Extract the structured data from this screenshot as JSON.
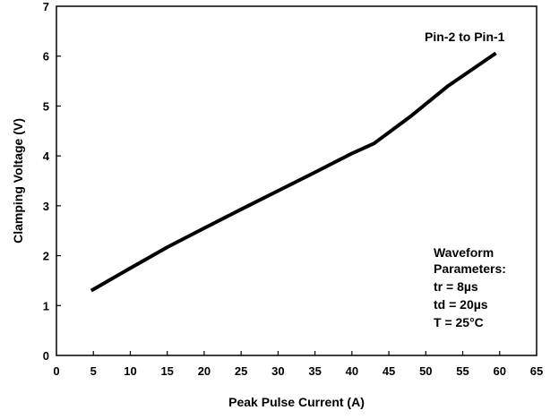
{
  "chart_data": {
    "type": "line",
    "title": "",
    "xlabel": "Peak Pulse Current (A)",
    "ylabel": "Clamping Voltage (V)",
    "xlim": [
      0,
      65
    ],
    "ylim": [
      0,
      7
    ],
    "x_ticks": [
      "0",
      "5",
      "10",
      "15",
      "20",
      "25",
      "30",
      "35",
      "40",
      "45",
      "50",
      "55",
      "60",
      "65"
    ],
    "y_ticks": [
      "0",
      "1",
      "2",
      "3",
      "4",
      "5",
      "6",
      "7"
    ],
    "grid": false,
    "legend": false,
    "series": [
      {
        "x": [
          4.7,
          10,
          15,
          20,
          25,
          30,
          35,
          40,
          43,
          48,
          53,
          59.5
        ],
        "y": [
          1.3,
          1.75,
          2.17,
          2.55,
          2.93,
          3.3,
          3.67,
          4.05,
          4.25,
          4.8,
          5.4,
          6.06
        ],
        "color": "#000000"
      }
    ],
    "annotations": {
      "series_label": "Pin-2 to Pin-1",
      "params": [
        "Waveform",
        "Parameters:",
        "tr = 8µs",
        "td = 20µs",
        "T = 25°C"
      ]
    }
  }
}
